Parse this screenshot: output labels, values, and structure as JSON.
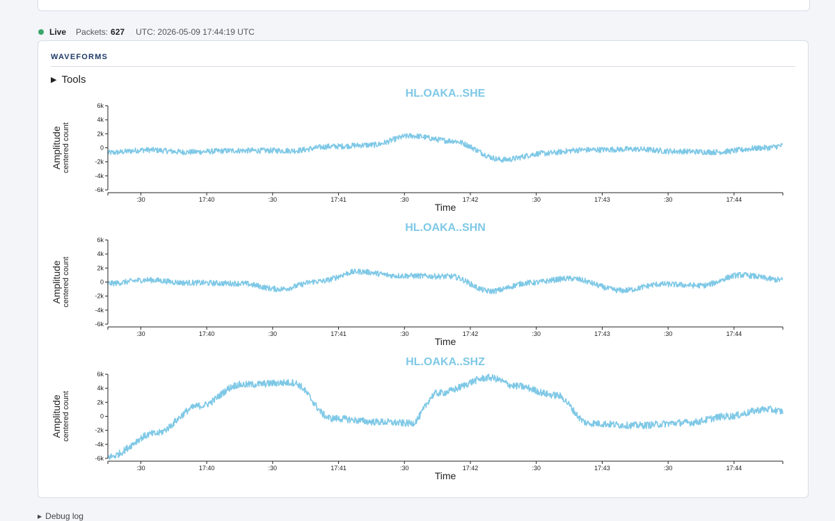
{
  "status": {
    "live_label": "Live",
    "packets_label": "Packets:",
    "packets_value": "627",
    "utc_text": "UTC: 2026-05-09 17:44:19 UTC",
    "live_color": "#3aa66a"
  },
  "card": {
    "title": "WAVEFORMS",
    "tools_label": "Tools"
  },
  "debug_label": "Debug log",
  "colors": {
    "trace": "#7ec8e6",
    "title": "#7ec8e6",
    "axis": "#222222"
  },
  "chart_data": [
    {
      "type": "line",
      "title": "HL.OAKA..SHE",
      "xlabel": "Time",
      "ylabel": "Amplitude",
      "ylabel_sub": "centered count",
      "ylim": [
        -6000,
        6000
      ],
      "y_ticks": [
        "6k",
        "4k",
        "2k",
        "0",
        "-2k",
        "-4k",
        "-6k"
      ],
      "x_tick_labels": [
        ":30",
        "17:40",
        ":30",
        "17:41",
        ":30",
        "17:42",
        ":30",
        "17:43",
        ":30",
        "17:44"
      ],
      "x_range_minutes": [
        "17:39:15",
        "17:44:22"
      ],
      "x": [
        0,
        0.3,
        0.6,
        1.0,
        1.4,
        1.7,
        2.0,
        2.3,
        2.6,
        3.0,
        3.3,
        3.6,
        4.0,
        4.3,
        4.6,
        5.0,
        5.12
      ],
      "values": [
        -700,
        -300,
        -600,
        -400,
        -400,
        200,
        400,
        1700,
        1000,
        -1700,
        -800,
        -300,
        -200,
        -500,
        -600,
        0,
        300
      ],
      "noise": 400
    },
    {
      "type": "line",
      "title": "HL.OAKA..SHN",
      "xlabel": "Time",
      "ylabel": "Amplitude",
      "ylabel_sub": "centered count",
      "ylim": [
        -6000,
        6000
      ],
      "y_ticks": [
        "6k",
        "4k",
        "2k",
        "0",
        "-2k",
        "-4k",
        "-6k"
      ],
      "x_tick_labels": [
        ":30",
        "17:40",
        ":30",
        "17:41",
        ":30",
        "17:42",
        ":30",
        "17:43",
        ":30",
        "17:44"
      ],
      "x_range_minutes": [
        "17:39:15",
        "17:44:22"
      ],
      "x": [
        0,
        0.3,
        0.6,
        1.0,
        1.3,
        1.6,
        1.9,
        2.2,
        2.6,
        2.9,
        3.2,
        3.5,
        3.9,
        4.2,
        4.5,
        4.8,
        5.12
      ],
      "values": [
        -200,
        300,
        -100,
        -200,
        -1000,
        100,
        1500,
        900,
        800,
        -1300,
        -100,
        500,
        -1200,
        -300,
        -500,
        1000,
        300
      ],
      "noise": 400
    },
    {
      "type": "line",
      "title": "HL.OAKA..SHZ",
      "xlabel": "Time",
      "ylabel": "Amplitude",
      "ylabel_sub": "centered count",
      "ylim": [
        -6000,
        6000
      ],
      "y_ticks": [
        "6k",
        "4k",
        "2k",
        "0",
        "-2k",
        "-4k",
        "-6k"
      ],
      "x_tick_labels": [
        ":30",
        "17:40",
        ":30",
        "17:41",
        ":30",
        "17:42",
        ":30",
        "17:43",
        ":30",
        "17:44"
      ],
      "x_range_minutes": [
        "17:39:15",
        "17:44:22"
      ],
      "x": [
        0,
        0.35,
        0.7,
        1.0,
        1.4,
        1.7,
        2.05,
        2.3,
        2.5,
        2.9,
        3.1,
        3.4,
        3.65,
        4.0,
        4.4,
        4.7,
        5.0,
        5.12
      ],
      "values": [
        -5800,
        -2500,
        1500,
        4500,
        4800,
        -300,
        -800,
        -1000,
        3300,
        5500,
        4300,
        3000,
        -1000,
        -1300,
        -900,
        0,
        1000,
        700
      ],
      "noise": 500
    }
  ]
}
